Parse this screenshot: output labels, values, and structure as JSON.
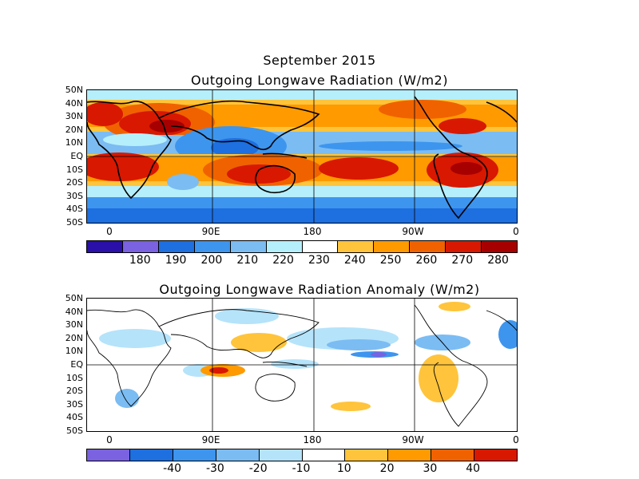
{
  "header": {
    "month": "September 2015"
  },
  "maps": [
    {
      "title": "Outgoing Longwave Radiation (W/m2)",
      "lat_labels": [
        "50N",
        "40N",
        "30N",
        "20N",
        "10N",
        "EQ",
        "10S",
        "20S",
        "30S",
        "40S",
        "50S"
      ],
      "lon_labels": [
        "0",
        "90E",
        "180",
        "90W",
        "0"
      ],
      "colorbar": {
        "colors": [
          "#2a0fa8",
          "#7a62e0",
          "#1e6fe0",
          "#3d95ee",
          "#7bbcf3",
          "#b5effc",
          "#ffffff",
          "#ffc43b",
          "#ff9a00",
          "#f06200",
          "#d81800",
          "#a70000"
        ],
        "labels": [
          "180",
          "190",
          "200",
          "210",
          "220",
          "230",
          "240",
          "250",
          "260",
          "270",
          "280"
        ]
      }
    },
    {
      "title": "Outgoing Longwave Radiation Anomaly (W/m2)",
      "lat_labels": [
        "50N",
        "40N",
        "30N",
        "20N",
        "10N",
        "EQ",
        "10S",
        "20S",
        "30S",
        "40S",
        "50S"
      ],
      "lon_labels": [
        "0",
        "90E",
        "180",
        "90W",
        "0"
      ],
      "colorbar": {
        "colors": [
          "#7a62e0",
          "#1e6fe0",
          "#3d95ee",
          "#7bbcf3",
          "#b5e3fa",
          "#ffffff",
          "#ffc43b",
          "#ff9a00",
          "#f06200",
          "#d81800"
        ],
        "labels": [
          "-40",
          "-30",
          "-20",
          "-10",
          "10",
          "20",
          "30",
          "40"
        ]
      }
    }
  ]
}
